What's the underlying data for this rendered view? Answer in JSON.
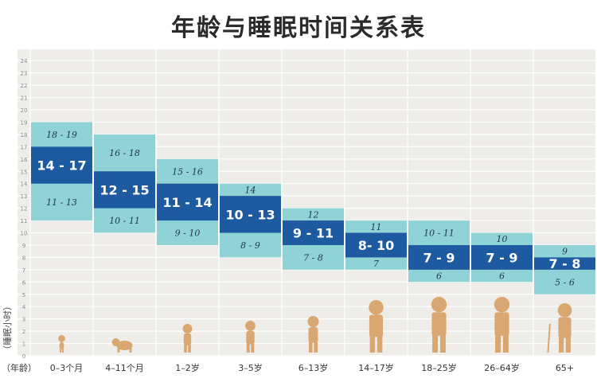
{
  "title": "年龄与睡眠时间关系表",
  "chart_data": {
    "type": "bar",
    "title": "年龄与睡眠时间关系表",
    "xlabel": "（年龄）",
    "ylabel": "（睡眠小时）",
    "ylim": [
      0,
      24
    ],
    "yticks": [
      "0",
      "1",
      "2",
      "3",
      "4",
      "5",
      "6",
      "7",
      "8",
      "9",
      "10",
      "11",
      "12",
      "13",
      "14",
      "15",
      "16",
      "17",
      "18",
      "19",
      "20",
      "21",
      "22",
      "23",
      "24"
    ],
    "grid": true,
    "categories": [
      "0–3个月",
      "4–11个月",
      "1–2岁",
      "3–5岁",
      "6–13岁",
      "14–17岁",
      "18–25岁",
      "26–64岁",
      "65+"
    ],
    "recommended": [
      {
        "low": 14,
        "high": 17,
        "label": "14 - 17"
      },
      {
        "low": 12,
        "high": 15,
        "label": "12 - 15"
      },
      {
        "low": 11,
        "high": 14,
        "label": "11 - 14"
      },
      {
        "low": 10,
        "high": 13,
        "label": "10 - 13"
      },
      {
        "low": 9,
        "high": 11,
        "label": "9 - 11"
      },
      {
        "low": 8,
        "high": 10,
        "label": "8- 10"
      },
      {
        "low": 7,
        "high": 9,
        "label": "7 - 9"
      },
      {
        "low": 7,
        "high": 9,
        "label": "7 - 9"
      },
      {
        "low": 7,
        "high": 8,
        "label": "7 - 8"
      }
    ],
    "acceptable": [
      {
        "low": 11,
        "high": 19,
        "upper_label": "18 - 19",
        "lower_label": "11 - 13"
      },
      {
        "low": 10,
        "high": 18,
        "upper_label": "16 - 18",
        "lower_label": "10 - 11"
      },
      {
        "low": 9,
        "high": 16,
        "upper_label": "15 - 16",
        "lower_label": "9 - 10"
      },
      {
        "low": 8,
        "high": 14,
        "upper_label": "14",
        "lower_label": "8 - 9"
      },
      {
        "low": 7,
        "high": 12,
        "upper_label": "12",
        "lower_label": "7 - 8"
      },
      {
        "low": 7,
        "high": 11,
        "upper_label": "11",
        "lower_label": "7"
      },
      {
        "low": 6,
        "high": 11,
        "upper_label": "10 - 11",
        "lower_label": "6"
      },
      {
        "low": 6,
        "high": 10,
        "upper_label": "10",
        "lower_label": "6"
      },
      {
        "low": 5,
        "high": 9,
        "upper_label": "9",
        "lower_label": "5 - 6"
      }
    ],
    "colors": {
      "background": "#efede9",
      "grid": "#ffffff",
      "acceptable": "#8fd3d6",
      "recommended": "#1d5aa0",
      "figure": "#d9a872",
      "text_dark": "#1e3550",
      "text_light": "#ffffff"
    }
  }
}
